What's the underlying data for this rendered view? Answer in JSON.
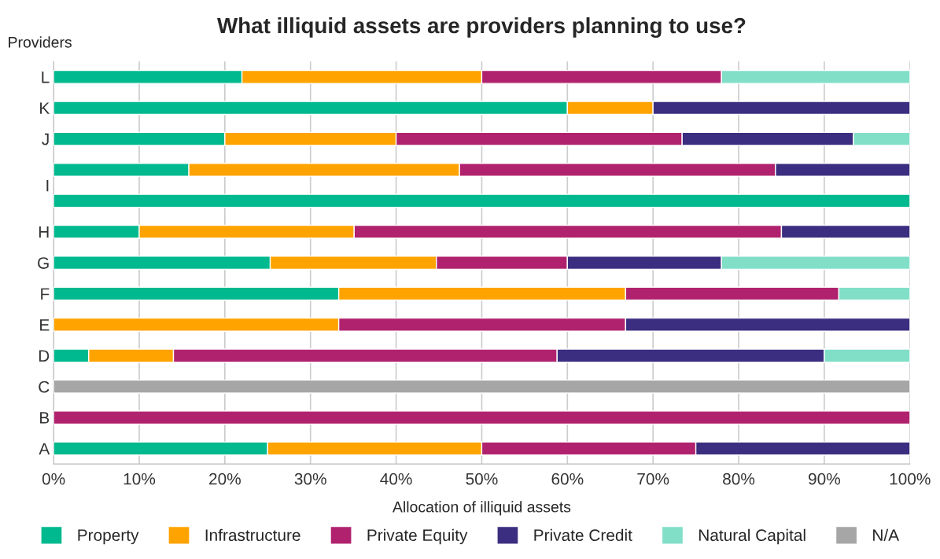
{
  "chart_data": {
    "type": "bar",
    "orientation": "horizontal",
    "stacked": true,
    "title": "What illiquid assets are providers planning to use?",
    "xlabel": "Allocation of illiquid assets",
    "ylabel": "Providers",
    "categories": [
      "L",
      "K",
      "J",
      "I",
      null,
      "H",
      "G",
      "F",
      "E",
      "D",
      "C",
      "B",
      "A"
    ],
    "series": [
      {
        "name": "Property",
        "color": "#00b98e",
        "values": [
          22,
          60,
          20,
          15.8,
          100,
          10,
          25.3,
          33.3,
          null,
          4.1,
          null,
          null,
          25
        ]
      },
      {
        "name": "Infrastructure",
        "color": "#ffa300",
        "values": [
          28,
          10,
          20,
          31.6,
          null,
          25.1,
          19.4,
          33.5,
          33.3,
          9.9,
          null,
          null,
          25
        ]
      },
      {
        "name": "Private Equity",
        "color": "#b0226e",
        "values": [
          28,
          null,
          33.4,
          36.9,
          null,
          49.9,
          15.3,
          24.9,
          33.5,
          44.8,
          null,
          100,
          25
        ]
      },
      {
        "name": "Private Credit",
        "color": "#3b2e80",
        "values": [
          null,
          30,
          20,
          15.7,
          null,
          15,
          18,
          null,
          33.2,
          31.2,
          null,
          null,
          25
        ]
      },
      {
        "name": "Natural Capital",
        "color": "#81dfc8",
        "values": [
          22,
          null,
          6.6,
          null,
          null,
          null,
          22,
          8.3,
          null,
          10,
          null,
          null,
          null
        ]
      },
      {
        "name": "N/A",
        "color": "#a6a6a6",
        "values": [
          null,
          null,
          null,
          null,
          null,
          null,
          null,
          null,
          null,
          null,
          100,
          null,
          null
        ]
      }
    ],
    "xlim": [
      0,
      100
    ],
    "xticks": [
      {
        "value": 0,
        "label": "0%"
      },
      {
        "value": 10,
        "label": "10%"
      },
      {
        "value": 20,
        "label": "20%"
      },
      {
        "value": 30,
        "label": "30%"
      },
      {
        "value": 40,
        "label": "40%"
      },
      {
        "value": 50,
        "label": "50%"
      },
      {
        "value": 60,
        "label": "60%"
      },
      {
        "value": 70,
        "label": "70%"
      },
      {
        "value": 80,
        "label": "80%"
      },
      {
        "value": 90,
        "label": "90%"
      },
      {
        "value": 100,
        "label": "100%"
      }
    ],
    "grid": "x",
    "legend": "bottom"
  }
}
